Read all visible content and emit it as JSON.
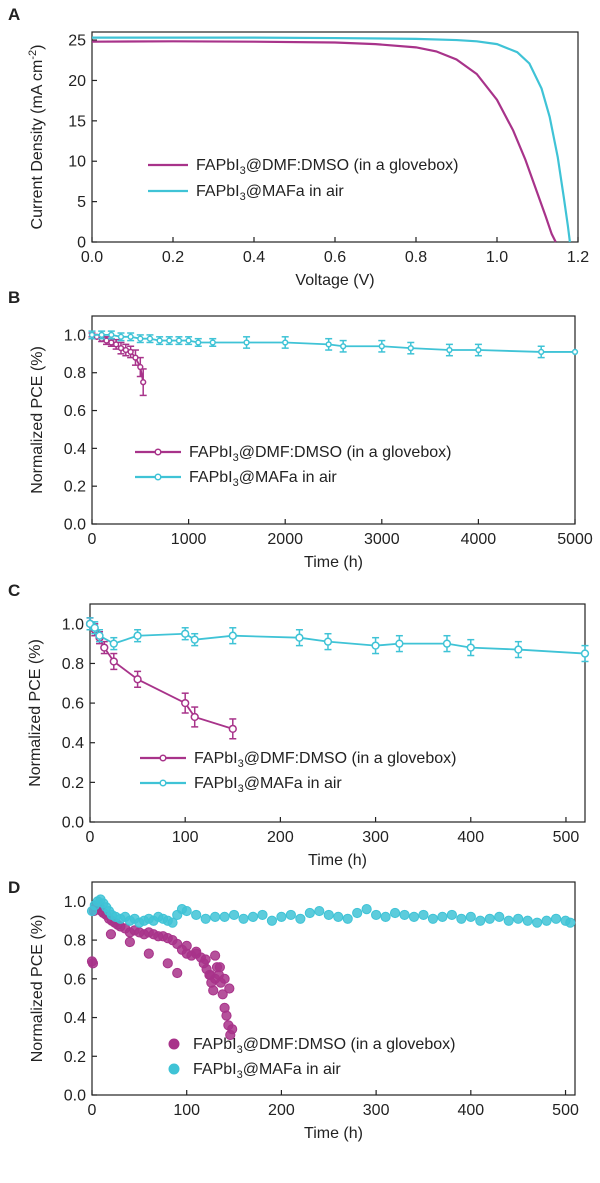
{
  "colors": {
    "magenta": "#a8338a",
    "cyan": "#3fc3d6",
    "axis": "#222222"
  },
  "chart_data": [
    {
      "id": "A",
      "panel_label": "A",
      "type": "line",
      "xlabel": "Voltage (V)",
      "ylabel_main": "Current Density (mA cm",
      "ylabel_sup": "-2",
      "ylabel_tail": ")",
      "xlim": [
        0.0,
        1.2
      ],
      "ylim": [
        0,
        26
      ],
      "xticks": [
        0.0,
        0.2,
        0.4,
        0.6,
        0.8,
        1.0,
        1.2
      ],
      "xtick_labels": [
        "0.0",
        "0.2",
        "0.4",
        "0.6",
        "0.8",
        "1.0",
        "1.2"
      ],
      "yticks": [
        0,
        5,
        10,
        15,
        20,
        25
      ],
      "ytick_labels": [
        "0",
        "5",
        "10",
        "15",
        "20",
        "25"
      ],
      "legend": {
        "placement": "center-left"
      },
      "series": [
        {
          "name_pre": "FAPbI",
          "name_sub": "3",
          "name_post": "@DMF:DMSO (in a glovebox)",
          "color": "#a8338a",
          "marker": "none",
          "x": [
            0,
            0.2,
            0.4,
            0.6,
            0.7,
            0.8,
            0.85,
            0.9,
            0.95,
            1.0,
            1.04,
            1.07,
            1.1,
            1.12,
            1.135,
            1.145
          ],
          "y": [
            24.8,
            24.85,
            24.8,
            24.7,
            24.5,
            24.1,
            23.6,
            22.6,
            20.8,
            17.6,
            13.8,
            10.2,
            6.0,
            3.2,
            1.0,
            0
          ]
        },
        {
          "name_pre": "FAPbI",
          "name_sub": "3",
          "name_post": "@MAFa in air",
          "color": "#3fc3d6",
          "marker": "none",
          "x": [
            0,
            0.2,
            0.4,
            0.6,
            0.8,
            0.9,
            0.95,
            1.0,
            1.05,
            1.08,
            1.11,
            1.13,
            1.15,
            1.165,
            1.175,
            1.18
          ],
          "y": [
            25.3,
            25.3,
            25.3,
            25.25,
            25.15,
            25.0,
            24.85,
            24.5,
            23.5,
            22.1,
            19.0,
            15.5,
            10.5,
            5.5,
            2.0,
            0
          ]
        }
      ]
    },
    {
      "id": "B",
      "panel_label": "B",
      "type": "line",
      "xlabel": "Time (h)",
      "ylabel_main": "Normalized PCE (%)",
      "ylabel_sup": "",
      "ylabel_tail": "",
      "xlim": [
        0,
        5000
      ],
      "ylim": [
        0,
        1.1
      ],
      "xticks": [
        0,
        1000,
        2000,
        3000,
        4000,
        5000
      ],
      "xtick_labels": [
        "0",
        "1000",
        "2000",
        "3000",
        "4000",
        "5000"
      ],
      "yticks": [
        0.0,
        0.2,
        0.4,
        0.6,
        0.8,
        1.0
      ],
      "ytick_labels": [
        "0.0",
        "0.2",
        "0.4",
        "0.6",
        "0.8",
        "1.0"
      ],
      "legend": {
        "placement": "center"
      },
      "series": [
        {
          "name_pre": "FAPbI",
          "name_sub": "3",
          "name_post": "@DMF:DMSO (in a glovebox)",
          "color": "#a8338a",
          "marker": "small-circle",
          "x": [
            0,
            50,
            100,
            150,
            200,
            250,
            300,
            350,
            400,
            450,
            500,
            530
          ],
          "y": [
            1.0,
            0.99,
            0.98,
            0.97,
            0.96,
            0.95,
            0.93,
            0.92,
            0.91,
            0.88,
            0.83,
            0.75
          ],
          "err": [
            0.01,
            0.01,
            0.015,
            0.02,
            0.02,
            0.025,
            0.03,
            0.03,
            0.03,
            0.04,
            0.05,
            0.07
          ]
        },
        {
          "name_pre": "FAPbI",
          "name_sub": "3",
          "name_post": "@MAFa in air",
          "color": "#3fc3d6",
          "marker": "small-circle",
          "x": [
            0,
            100,
            200,
            300,
            400,
            500,
            600,
            700,
            800,
            900,
            1000,
            1100,
            1250,
            1600,
            2000,
            2450,
            2600,
            3000,
            3300,
            3700,
            4000,
            4650,
            5000
          ],
          "y": [
            1.0,
            1.0,
            1.0,
            0.99,
            0.99,
            0.98,
            0.98,
            0.97,
            0.97,
            0.97,
            0.97,
            0.96,
            0.96,
            0.96,
            0.96,
            0.95,
            0.94,
            0.94,
            0.93,
            0.92,
            0.92,
            0.91,
            0.91
          ],
          "err": [
            0.02,
            0.02,
            0.02,
            0.02,
            0.02,
            0.02,
            0.02,
            0.02,
            0.02,
            0.02,
            0.02,
            0.02,
            0.02,
            0.03,
            0.03,
            0.03,
            0.03,
            0.03,
            0.03,
            0.03,
            0.03,
            0.03,
            0
          ]
        }
      ]
    },
    {
      "id": "C",
      "panel_label": "C",
      "type": "line",
      "xlabel": "Time (h)",
      "ylabel_main": "Normalized PCE (%)",
      "ylabel_sup": "",
      "ylabel_tail": "",
      "xlim": [
        0,
        520
      ],
      "ylim": [
        0,
        1.1
      ],
      "xticks": [
        0,
        100,
        200,
        300,
        400,
        500
      ],
      "xtick_labels": [
        "0",
        "100",
        "200",
        "300",
        "400",
        "500"
      ],
      "yticks": [
        0.0,
        0.2,
        0.4,
        0.6,
        0.8,
        1.0
      ],
      "ytick_labels": [
        "0.0",
        "0.2",
        "0.4",
        "0.6",
        "0.8",
        "1.0"
      ],
      "legend": {
        "placement": "center"
      },
      "series": [
        {
          "name_pre": "FAPbI",
          "name_sub": "3",
          "name_post": "@DMF:DMSO (in a glovebox)",
          "color": "#a8338a",
          "marker": "circle",
          "x": [
            0,
            5,
            10,
            15,
            25,
            50,
            100,
            110,
            150
          ],
          "y": [
            1.0,
            0.97,
            0.93,
            0.88,
            0.81,
            0.72,
            0.6,
            0.53,
            0.47
          ],
          "err": [
            0.03,
            0.03,
            0.03,
            0.03,
            0.04,
            0.04,
            0.05,
            0.05,
            0.05
          ]
        },
        {
          "name_pre": "FAPbI",
          "name_sub": "3",
          "name_post": "@MAFa in air",
          "color": "#3fc3d6",
          "marker": "circle",
          "x": [
            0,
            5,
            10,
            25,
            50,
            100,
            110,
            150,
            220,
            250,
            300,
            325,
            375,
            400,
            450,
            520
          ],
          "y": [
            1.0,
            0.98,
            0.94,
            0.9,
            0.94,
            0.95,
            0.92,
            0.94,
            0.93,
            0.91,
            0.89,
            0.9,
            0.9,
            0.88,
            0.87,
            0.85
          ],
          "err": [
            0.03,
            0.03,
            0.03,
            0.03,
            0.03,
            0.03,
            0.03,
            0.04,
            0.04,
            0.04,
            0.04,
            0.04,
            0.04,
            0.04,
            0.04,
            0.04
          ]
        }
      ]
    },
    {
      "id": "D",
      "panel_label": "D",
      "type": "scatter",
      "xlabel": "Time (h)",
      "ylabel_main": "Normalized PCE (%)",
      "ylabel_sup": "",
      "ylabel_tail": "",
      "xlim": [
        0,
        510
      ],
      "ylim": [
        0,
        1.1
      ],
      "xticks": [
        0,
        100,
        200,
        300,
        400,
        500
      ],
      "xtick_labels": [
        "0",
        "100",
        "200",
        "300",
        "400",
        "500"
      ],
      "yticks": [
        0.0,
        0.2,
        0.4,
        0.6,
        0.8,
        1.0
      ],
      "ytick_labels": [
        "0.0",
        "0.2",
        "0.4",
        "0.6",
        "0.8",
        "1.0"
      ],
      "legend": {
        "placement": "bottom-center"
      },
      "series": [
        {
          "name_pre": "FAPbI",
          "name_sub": "3",
          "name_post": "@DMF:DMSO (in a glovebox)",
          "color": "#a8338a",
          "marker": "sphere",
          "x": [
            0,
            1,
            2,
            4,
            6,
            8,
            10,
            12,
            15,
            18,
            21,
            24,
            27,
            30,
            35,
            40,
            45,
            50,
            55,
            60,
            65,
            70,
            75,
            80,
            85,
            90,
            95,
            100,
            105,
            110,
            115,
            118,
            121,
            124,
            126,
            128,
            130,
            132,
            134,
            136,
            138,
            140,
            142,
            144,
            146,
            20,
            40,
            60,
            80,
            90,
            100,
            110,
            120,
            125,
            130,
            135,
            140,
            145,
            148
          ],
          "y": [
            0.69,
            0.68,
            0.95,
            0.97,
            0.98,
            0.97,
            0.95,
            0.94,
            0.93,
            0.91,
            0.9,
            0.89,
            0.88,
            0.87,
            0.86,
            0.84,
            0.85,
            0.84,
            0.83,
            0.84,
            0.83,
            0.82,
            0.82,
            0.81,
            0.8,
            0.78,
            0.75,
            0.73,
            0.72,
            0.73,
            0.71,
            0.68,
            0.65,
            0.62,
            0.58,
            0.54,
            0.6,
            0.66,
            0.62,
            0.58,
            0.52,
            0.45,
            0.41,
            0.36,
            0.31,
            0.83,
            0.79,
            0.73,
            0.68,
            0.63,
            0.77,
            0.74,
            0.7,
            0.62,
            0.72,
            0.66,
            0.6,
            0.55,
            0.34
          ]
        },
        {
          "name_pre": "FAPbI",
          "name_sub": "3",
          "name_post": "@MAFa in air",
          "color": "#3fc3d6",
          "marker": "sphere",
          "x": [
            0,
            3,
            6,
            9,
            12,
            15,
            18,
            21,
            25,
            30,
            35,
            40,
            45,
            50,
            55,
            60,
            65,
            70,
            75,
            80,
            85,
            90,
            95,
            100,
            110,
            120,
            130,
            140,
            150,
            160,
            170,
            180,
            190,
            200,
            210,
            220,
            230,
            240,
            250,
            260,
            270,
            280,
            290,
            300,
            310,
            320,
            330,
            340,
            350,
            360,
            370,
            380,
            390,
            400,
            410,
            420,
            430,
            440,
            450,
            460,
            470,
            480,
            490,
            500,
            505
          ],
          "y": [
            0.95,
            0.98,
            1.0,
            1.01,
            0.99,
            0.97,
            0.95,
            0.93,
            0.92,
            0.91,
            0.92,
            0.9,
            0.91,
            0.89,
            0.9,
            0.91,
            0.9,
            0.92,
            0.91,
            0.9,
            0.89,
            0.93,
            0.96,
            0.95,
            0.93,
            0.91,
            0.92,
            0.92,
            0.93,
            0.91,
            0.92,
            0.93,
            0.9,
            0.92,
            0.93,
            0.91,
            0.94,
            0.95,
            0.93,
            0.92,
            0.91,
            0.94,
            0.96,
            0.93,
            0.92,
            0.94,
            0.93,
            0.92,
            0.93,
            0.91,
            0.92,
            0.93,
            0.91,
            0.92,
            0.9,
            0.91,
            0.92,
            0.9,
            0.91,
            0.9,
            0.89,
            0.9,
            0.91,
            0.9,
            0.89
          ]
        }
      ]
    }
  ]
}
